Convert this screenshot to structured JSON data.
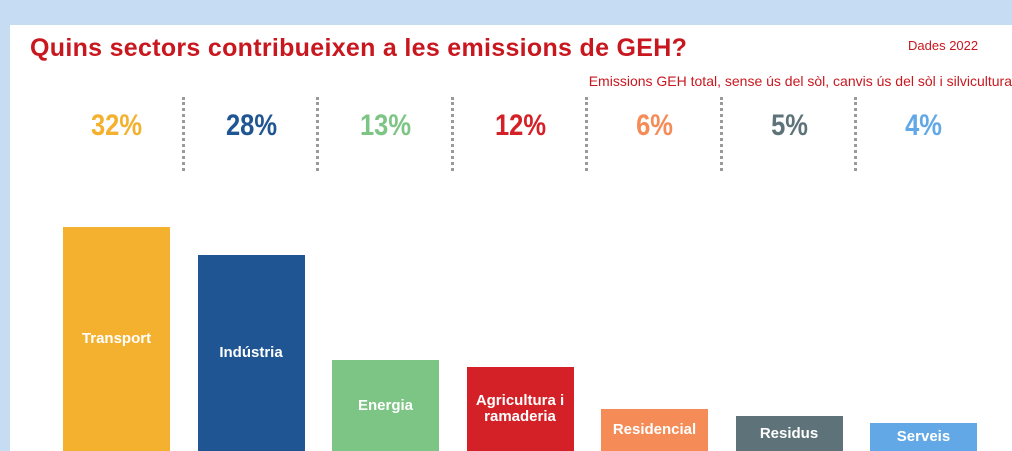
{
  "chart_data": {
    "type": "bar",
    "title": "Quins sectors contribueixen a les emissions de GEH?",
    "note": "Dades 2022",
    "subtitle": "Emissions GEH total, sense ús del sòl, canvis ús del sòl i silvicultura",
    "categories": [
      "Transport",
      "Indústria",
      "Energia",
      "Agricultura i ramaderia",
      "Residencial",
      "Residus",
      "Serveis"
    ],
    "values": [
      32,
      28,
      13,
      12,
      6,
      5,
      4
    ],
    "value_labels": [
      "32%",
      "28%",
      "13%",
      "12%",
      "6%",
      "5%",
      "4%"
    ],
    "colors": [
      "#f3b12f",
      "#1f5592",
      "#7dc585",
      "#d42027",
      "#f58b57",
      "#5d7379",
      "#63a8e6"
    ]
  }
}
